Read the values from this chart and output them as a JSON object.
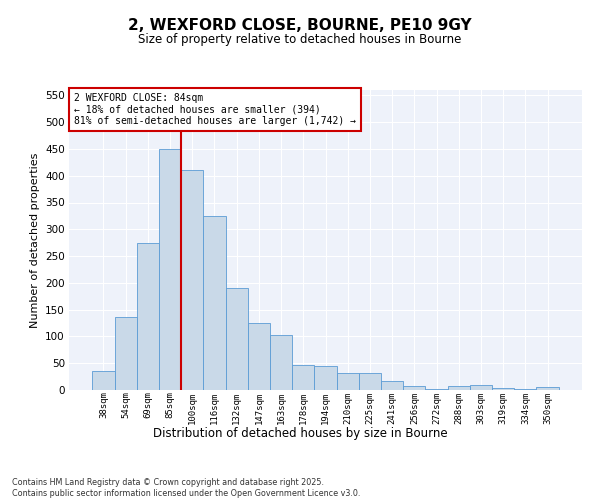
{
  "title": "2, WEXFORD CLOSE, BOURNE, PE10 9GY",
  "subtitle": "Size of property relative to detached houses in Bourne",
  "xlabel": "Distribution of detached houses by size in Bourne",
  "ylabel": "Number of detached properties",
  "categories": [
    "38sqm",
    "54sqm",
    "69sqm",
    "85sqm",
    "100sqm",
    "116sqm",
    "132sqm",
    "147sqm",
    "163sqm",
    "178sqm",
    "194sqm",
    "210sqm",
    "225sqm",
    "241sqm",
    "256sqm",
    "272sqm",
    "288sqm",
    "303sqm",
    "319sqm",
    "334sqm",
    "350sqm"
  ],
  "values": [
    35,
    137,
    275,
    450,
    410,
    325,
    190,
    125,
    103,
    46,
    45,
    32,
    32,
    16,
    8,
    2,
    8,
    10,
    3,
    2,
    5
  ],
  "bar_color": "#c9d9e8",
  "bar_edge_color": "#5b9bd5",
  "vline_color": "#cc0000",
  "vline_pos": 3.5,
  "annotation_text": "2 WEXFORD CLOSE: 84sqm\n← 18% of detached houses are smaller (394)\n81% of semi-detached houses are larger (1,742) →",
  "annotation_box_color": "#cc0000",
  "ylim": [
    0,
    560
  ],
  "yticks": [
    0,
    50,
    100,
    150,
    200,
    250,
    300,
    350,
    400,
    450,
    500,
    550
  ],
  "background_color": "#eef2fa",
  "footer_line1": "Contains HM Land Registry data © Crown copyright and database right 2025.",
  "footer_line2": "Contains public sector information licensed under the Open Government Licence v3.0."
}
